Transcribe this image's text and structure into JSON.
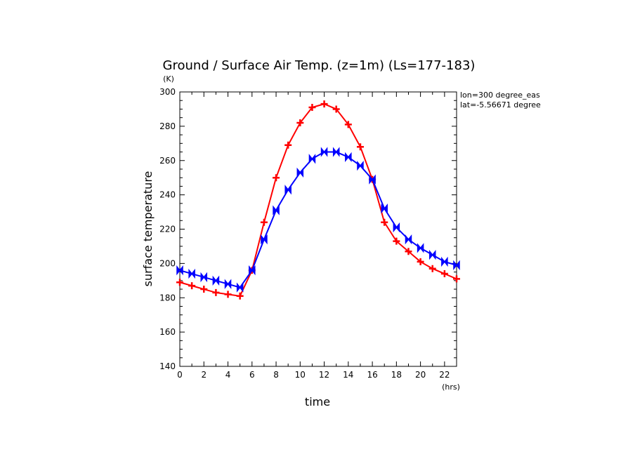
{
  "chart_data": {
    "type": "line",
    "title": "Ground / Surface Air Temp. (z=1m) (Ls=177-183)",
    "xlabel": "time",
    "ylabel": "surface temperature",
    "x_unit": "(hrs)",
    "y_unit": "(K)",
    "xlim": [
      0,
      23
    ],
    "ylim": [
      140,
      300
    ],
    "x_ticks": [
      0,
      2,
      4,
      6,
      8,
      10,
      12,
      14,
      16,
      18,
      20,
      22
    ],
    "x_tick_labels": [
      "0",
      "2",
      "4",
      "6",
      "8",
      "10",
      "12",
      "14",
      "16",
      "18",
      "20",
      "22"
    ],
    "y_ticks": [
      140,
      160,
      180,
      200,
      220,
      240,
      260,
      280,
      300
    ],
    "y_tick_labels": [
      "140",
      "160",
      "180",
      "200",
      "220",
      "240",
      "260",
      "280",
      "300"
    ],
    "annotations": [
      "lon=300 degree_eas",
      "lat=-5.56671 degree"
    ],
    "x": [
      0,
      1,
      2,
      3,
      4,
      5,
      6,
      7,
      8,
      9,
      10,
      11,
      12,
      13,
      14,
      15,
      16,
      17,
      18,
      19,
      20,
      21,
      22,
      23
    ],
    "grid": false,
    "series": [
      {
        "color": "#ff0000",
        "marker": "plus",
        "values": [
          189,
          187,
          185,
          183,
          182,
          181,
          196,
          224,
          250,
          269,
          282,
          291,
          293,
          290,
          281,
          268,
          249,
          224,
          213,
          207,
          201,
          197,
          194,
          191
        ]
      },
      {
        "color": "#0000ff",
        "marker": "bowtie",
        "values": [
          196,
          194,
          192,
          190,
          188,
          186,
          196,
          214,
          231,
          243,
          253,
          261,
          265,
          265,
          262,
          257,
          249,
          232,
          221,
          214,
          209,
          205,
          201,
          199
        ]
      }
    ]
  }
}
